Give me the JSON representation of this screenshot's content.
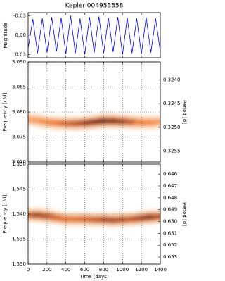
{
  "chart_data": [
    {
      "type": "line",
      "title": "Kepler-004953358",
      "ylabel": "Magnitude",
      "x": [
        0,
        50,
        100,
        150,
        200,
        250,
        300,
        350,
        400,
        450,
        500,
        550,
        600,
        650,
        700,
        750,
        800,
        850,
        900,
        950,
        1000,
        1050,
        1100,
        1150,
        1200,
        1250,
        1300,
        1350,
        1400
      ],
      "values": [
        0.02,
        -0.025,
        0.028,
        -0.026,
        0.027,
        -0.028,
        0.025,
        -0.027,
        0.029,
        -0.03,
        0.028,
        -0.026,
        0.03,
        -0.028,
        0.027,
        -0.029,
        0.028,
        -0.027,
        0.026,
        -0.028,
        0.03,
        -0.027,
        0.028,
        -0.026,
        0.029,
        -0.028,
        0.027,
        -0.026,
        0.025
      ],
      "color": "#0000ff",
      "xlim": [
        0,
        1400
      ],
      "ylim": [
        0.035,
        -0.035
      ],
      "yticks": [
        -0.03,
        {
          "value": 0,
          "label": "0.00"
        },
        0.03
      ],
      "grid": false
    },
    {
      "type": "heatmap",
      "ylabel": "Frequency [c/d]",
      "y2label": "Period [d]",
      "x": [
        0,
        100,
        200,
        300,
        400,
        500,
        600,
        700,
        800,
        900,
        1000,
        1100,
        1200,
        1300,
        1400
      ],
      "values": [
        3.0785,
        3.0783,
        3.078,
        3.0778,
        3.0777,
        3.0777,
        3.0778,
        3.078,
        3.0782,
        3.0782,
        3.0781,
        3.078,
        3.0779,
        3.0779,
        3.078
      ],
      "intensity": [
        0.3,
        0.35,
        0.4,
        0.5,
        0.6,
        0.7,
        0.8,
        0.9,
        1,
        0.95,
        0.85,
        0.7,
        0.5,
        0.45,
        0.35
      ],
      "xlim": [
        0,
        1400
      ],
      "ylim": [
        3.07,
        3.09
      ],
      "yticks": [
        {
          "value": 3.07,
          "label": "3.070"
        },
        3.075,
        {
          "value": 3.08,
          "label": "3.080"
        },
        3.085,
        {
          "value": 3.09,
          "label": "3.090"
        }
      ],
      "y2lim": [
        0.32573,
        0.32362
      ],
      "y2ticks": [
        {
          "value": 0.324,
          "label": "0.3240"
        },
        0.3245,
        {
          "value": 0.325,
          "label": "0.3250"
        },
        0.3255
      ],
      "grid": true
    },
    {
      "type": "heatmap",
      "ylabel": "Frequency [c/d]",
      "y2label": "Period [d]",
      "xlabel": "Time (days)",
      "x": [
        0,
        100,
        200,
        300,
        400,
        500,
        600,
        700,
        800,
        900,
        1000,
        1100,
        1200,
        1300,
        1400
      ],
      "values": [
        1.5398,
        1.5398,
        1.5396,
        1.5393,
        1.539,
        1.539,
        1.539,
        1.5389,
        1.5389,
        1.5388,
        1.5389,
        1.539,
        1.5392,
        1.5394,
        1.5395
      ],
      "intensity": [
        0.6,
        0.8,
        0.75,
        0.6,
        0.55,
        0.55,
        0.6,
        0.65,
        0.75,
        0.8,
        0.75,
        0.7,
        0.8,
        0.9,
        0.75
      ],
      "xlim": [
        0,
        1400
      ],
      "ylim": [
        1.53,
        1.55
      ],
      "xticks": [
        0,
        200,
        400,
        600,
        800,
        1000,
        1200,
        1400
      ],
      "yticks": [
        {
          "value": 1.53,
          "label": "1.530"
        },
        1.535,
        {
          "value": 1.54,
          "label": "1.540"
        },
        1.545,
        {
          "value": 1.55,
          "label": "1.550"
        }
      ],
      "y2lim": [
        0.65359,
        0.64516
      ],
      "y2ticks": [
        0.646,
        0.647,
        0.648,
        0.649,
        {
          "value": 0.65,
          "label": "0.650"
        },
        0.651,
        0.652,
        0.653
      ],
      "grid": true
    }
  ]
}
